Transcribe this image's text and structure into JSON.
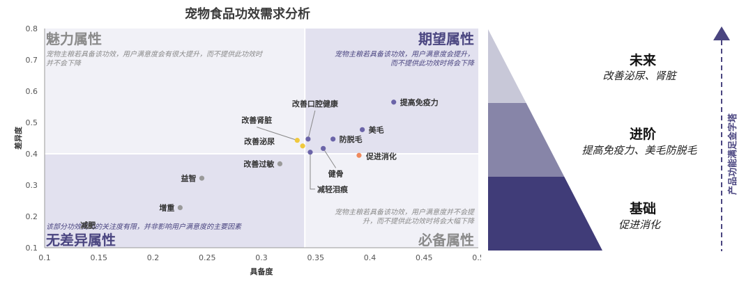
{
  "chart_data": {
    "type": "scatter",
    "title": "宠物食品功效需求分析",
    "xlabel": "具备度",
    "ylabel": "差异度",
    "xlim": [
      0.1,
      0.5
    ],
    "ylim": [
      0.1,
      0.8
    ],
    "xticks": [
      "0.1",
      "0.15",
      "0.2",
      "0.25",
      "0.3",
      "0.35",
      "0.4",
      "0.45",
      "0.5"
    ],
    "yticks": [
      "0.1",
      "0.2",
      "0.3",
      "0.4",
      "0.5",
      "0.6",
      "0.7",
      "0.8"
    ],
    "quadrant_split": {
      "x": 0.34,
      "y": 0.4
    },
    "quadrants": [
      {
        "name": "魅力属性",
        "desc": [
          "宠物主粮若具备该功效，用户满意度会有很大提升，而不提供此功效时",
          "并不会下降"
        ],
        "position": "top-left"
      },
      {
        "name": "期望属性",
        "desc": [
          "宠物主粮若具备该功效，用户满意度会提升，",
          "而不提供此功效时将会下降"
        ],
        "position": "top-right"
      },
      {
        "name": "无差异属性",
        "desc": [
          "该部分功效受到的关注度有限，并非影响用户满意度的主要因素"
        ],
        "position": "bottom-left"
      },
      {
        "name": "必备属性",
        "desc": [
          "宠物主粮若具备该功效，用户满意度并不会提",
          "升，而不提供此功效时将会大幅下降"
        ],
        "position": "bottom-right"
      }
    ],
    "points": [
      {
        "label": "提高免疫力",
        "x": 0.422,
        "y": 0.565,
        "color": "#6b64a8"
      },
      {
        "label": "美毛",
        "x": 0.393,
        "y": 0.477,
        "color": "#6b64a8"
      },
      {
        "label": "防脱毛",
        "x": 0.366,
        "y": 0.447,
        "color": "#6b64a8"
      },
      {
        "label": "改善口腔健康",
        "x": 0.343,
        "y": 0.447,
        "color": "#6b64a8"
      },
      {
        "label": "健骨",
        "x": 0.357,
        "y": 0.417,
        "color": "#6b64a8"
      },
      {
        "label": "减轻泪痕",
        "x": 0.345,
        "y": 0.405,
        "color": "#6b64a8"
      },
      {
        "label": "改善肾脏",
        "x": 0.333,
        "y": 0.443,
        "color": "#f0c93e"
      },
      {
        "label": "改善泌尿",
        "x": 0.338,
        "y": 0.425,
        "color": "#f0c93e"
      },
      {
        "label": "促进消化",
        "x": 0.39,
        "y": 0.395,
        "color": "#f08a5d"
      },
      {
        "label": "改善过敏",
        "x": 0.317,
        "y": 0.368,
        "color": "#9a9a9a"
      },
      {
        "label": "益智",
        "x": 0.245,
        "y": 0.322,
        "color": "#9a9a9a"
      },
      {
        "label": "增重",
        "x": 0.225,
        "y": 0.228,
        "color": "#9a9a9a"
      },
      {
        "label": "减肥",
        "x": 0.142,
        "y": 0.172,
        "color": "#9a9a9a"
      }
    ]
  },
  "pyramid": {
    "levels": [
      {
        "title": "未来",
        "subtitle": "改善泌尿、肾脏",
        "color": "#c8c8d8"
      },
      {
        "title": "进阶",
        "subtitle": "提高免疫力、美毛防脱毛",
        "color": "#8785a8"
      },
      {
        "title": "基础",
        "subtitle": "促进消化",
        "color": "#403c78"
      }
    ],
    "side_label": "产品功能满足金字塔"
  }
}
